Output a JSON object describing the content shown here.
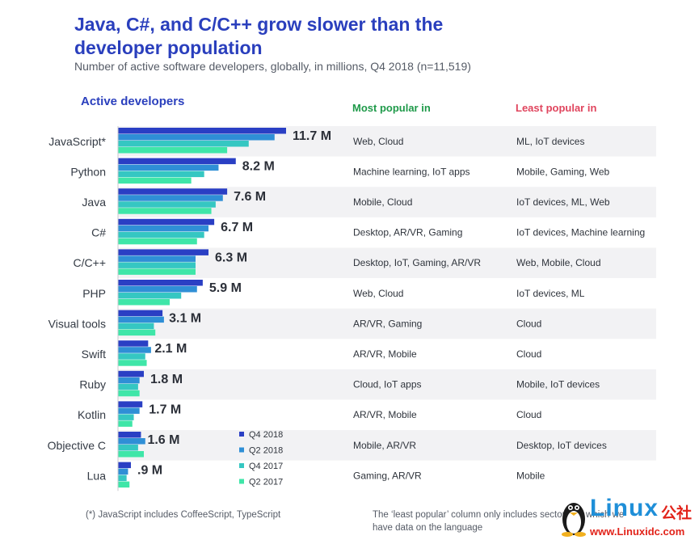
{
  "header": {
    "title": "Java, C#, and C/C++ grow slower than the developer population",
    "subtitle": "Number of active software developers, globally, in millions, Q4 2018 (n=11,519)"
  },
  "columns": {
    "active": "Active developers",
    "most": "Most popular in",
    "least": "Least popular in"
  },
  "colors": {
    "q4_2018": "#2a3fc4",
    "q2_2018": "#2f8fd6",
    "q4_2017": "#35c7c2",
    "q2_2017": "#3fe6a8",
    "row_band": "#f2f2f4"
  },
  "chart_data": {
    "type": "bar",
    "orientation": "horizontal",
    "title": "Java, C#, and C/C++ grow slower than the developer population",
    "xlabel": "Active developers (millions)",
    "categories": [
      "JavaScript*",
      "Python",
      "Java",
      "C#",
      "C/C++",
      "PHP",
      "Visual tools",
      "Swift",
      "Ruby",
      "Kotlin",
      "Objective C",
      "Lua"
    ],
    "value_labels": [
      "11.7 M",
      "8.2 M",
      "7.6 M",
      "6.7 M",
      "6.3 M",
      "5.9 M",
      "3.1 M",
      "2.1 M",
      "1.8 M",
      "1.7 M",
      "1.6 M",
      ".9 M"
    ],
    "xlim": [
      0,
      12
    ],
    "series": [
      {
        "name": "Q4 2018",
        "values": [
          11.7,
          8.2,
          7.6,
          6.7,
          6.3,
          5.9,
          3.1,
          2.1,
          1.8,
          1.7,
          1.6,
          0.9
        ]
      },
      {
        "name": "Q2 2018",
        "values": [
          10.9,
          7.0,
          7.3,
          6.3,
          5.4,
          5.5,
          3.2,
          2.3,
          1.5,
          1.5,
          1.9,
          0.7
        ]
      },
      {
        "name": "Q4 2017",
        "values": [
          9.1,
          6.0,
          6.8,
          6.0,
          5.4,
          4.4,
          2.5,
          1.9,
          1.4,
          1.1,
          1.4,
          0.6
        ]
      },
      {
        "name": "Q2 2017",
        "values": [
          7.6,
          5.1,
          6.5,
          5.5,
          5.4,
          3.6,
          2.6,
          2.0,
          1.5,
          1.0,
          1.8,
          0.8
        ]
      }
    ],
    "legend_position": "bottom-center"
  },
  "most_popular": [
    "Web, Cloud",
    "Machine learning, IoT apps",
    "Mobile, Cloud",
    "Desktop, AR/VR, Gaming",
    "Desktop, IoT, Gaming, AR/VR",
    "Web, Cloud",
    "AR/VR, Gaming",
    "AR/VR, Mobile",
    "Cloud, IoT apps",
    "AR/VR, Mobile",
    "Mobile, AR/VR",
    "Gaming, AR/VR"
  ],
  "least_popular": [
    "ML, IoT devices",
    "Mobile, Gaming, Web",
    "IoT devices, ML, Web",
    "IoT devices, Machine learning",
    "Web, Mobile, Cloud",
    "IoT devices, ML",
    "Cloud",
    "Cloud",
    "Mobile, IoT devices",
    "Cloud",
    "Desktop, IoT devices",
    "Mobile"
  ],
  "footnotes": {
    "left": "(*) JavaScript includes CoffeeScript, TypeScript",
    "right": "The ‘least popular’ column only includes sectors for which we have data on the language"
  },
  "watermark": {
    "brand": "Linux",
    "cn": "公社",
    "url": "www.Linuxidc.com"
  }
}
